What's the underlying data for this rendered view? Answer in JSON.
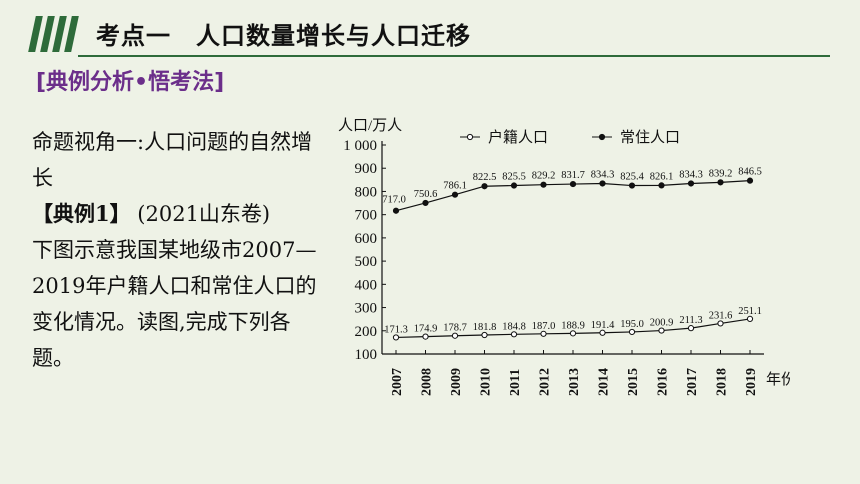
{
  "header": {
    "title": "考点一　人口数量增长与人口迁移"
  },
  "section_tag": "[典例分析•悟考法]",
  "left": {
    "angle_heading": "命题视角一:人口问题的自然增长",
    "example_label": "【典例1】",
    "example_source": " (2021山东卷)",
    "example_body": "下图示意我国某地级市2007—2019年户籍人口和常住人口的变化情况。读图,完成下列各题。"
  },
  "chart_data": {
    "type": "line",
    "ylabel": "人口/万人",
    "xlabel": "年份",
    "ylim": [
      100,
      1000
    ],
    "yticks": [
      "100",
      "200",
      "300",
      "400",
      "500",
      "600",
      "700",
      "800",
      "900",
      "1 000"
    ],
    "ytick_values": [
      100,
      200,
      300,
      400,
      500,
      600,
      700,
      800,
      900,
      1000
    ],
    "categories": [
      "2007",
      "2008",
      "2009",
      "2010",
      "2011",
      "2012",
      "2013",
      "2014",
      "2015",
      "2016",
      "2017",
      "2018",
      "2019"
    ],
    "legend_position": "top",
    "grid": false,
    "series": [
      {
        "name": "户籍人口",
        "marker": "open-circle",
        "values": [
          171.3,
          174.9,
          178.7,
          181.8,
          184.8,
          187.0,
          188.9,
          191.4,
          195.0,
          200.9,
          211.3,
          231.6,
          251.1
        ]
      },
      {
        "name": "常住人口",
        "marker": "filled-circle",
        "values": [
          717.0,
          750.6,
          786.1,
          822.5,
          825.5,
          829.2,
          831.7,
          834.3,
          825.4,
          826.1,
          834.3,
          839.2,
          846.5
        ]
      }
    ]
  },
  "colors": {
    "background": "#eef2e6",
    "accent": "#2e6b3a",
    "tag": "#6b2e8a"
  }
}
